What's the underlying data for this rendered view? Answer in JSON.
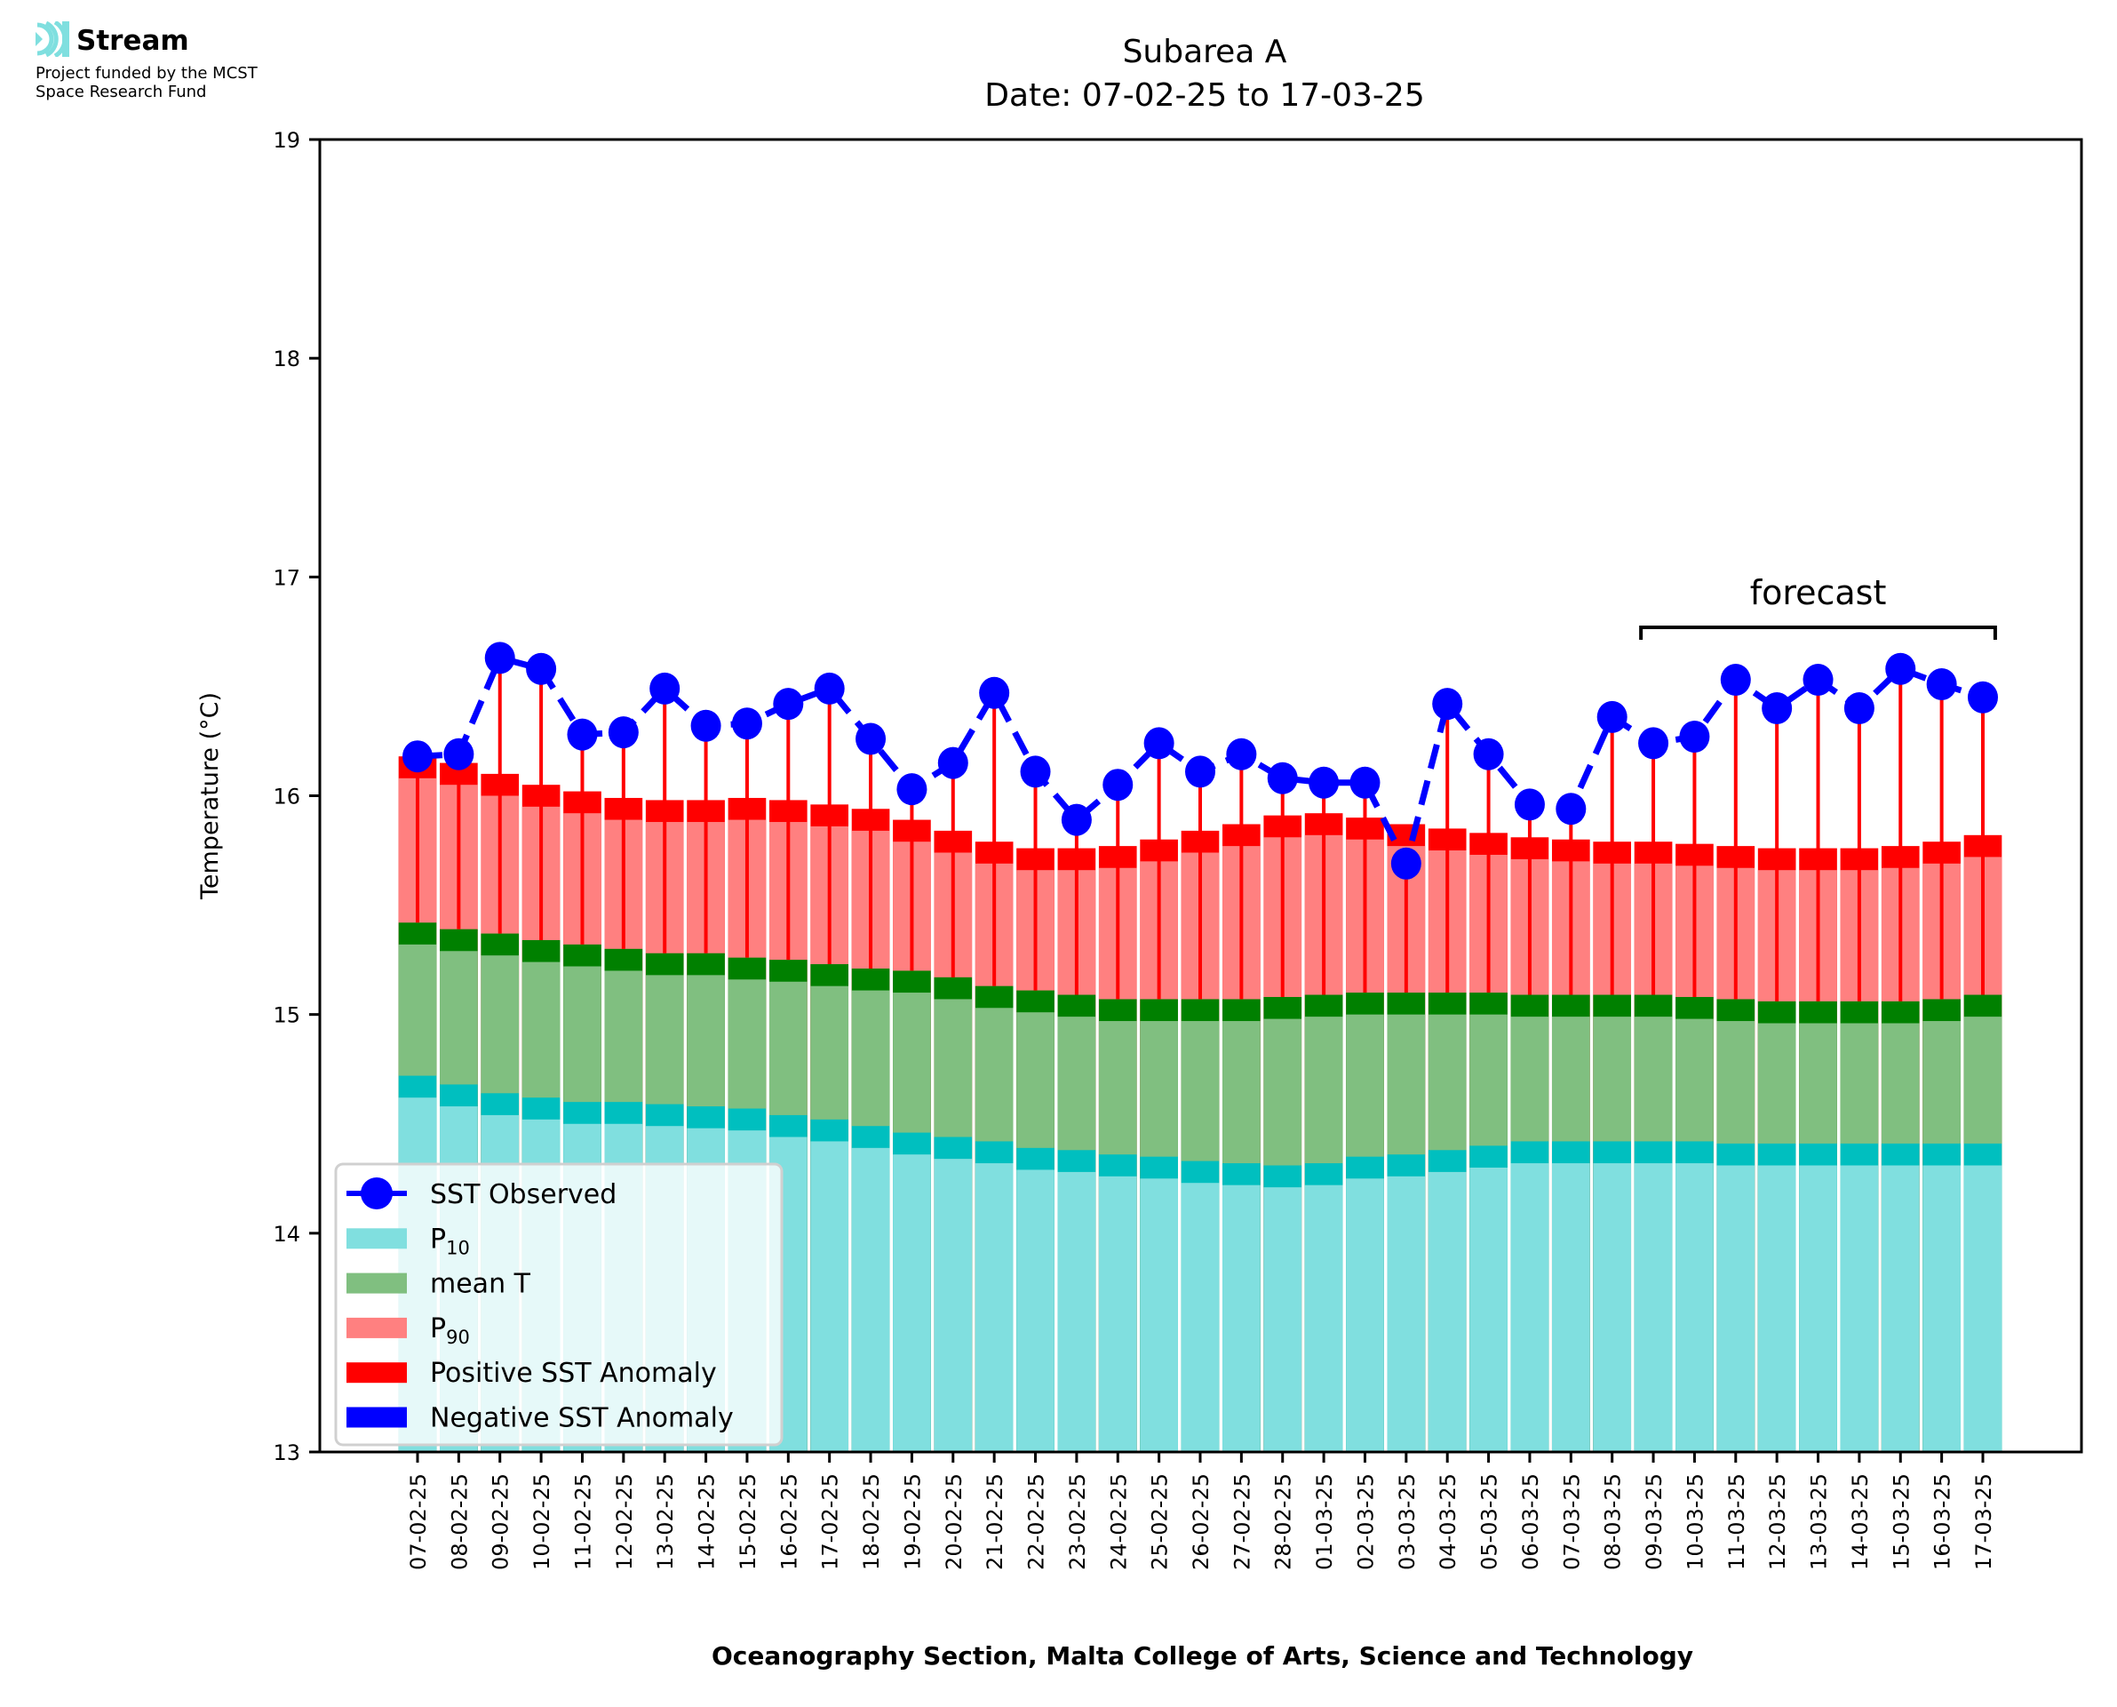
{
  "logo": {
    "icon": "stream-waves-icon",
    "brand": "Stream",
    "fund_line1": "Project funded by the MCST",
    "fund_line2": "Space Research Fund"
  },
  "colors": {
    "p10": "#80dfdf",
    "p10_cap": "#00bfbf",
    "mean": "#80bf80",
    "mean_cap": "#008000",
    "p90": "#ff8080",
    "p90_cap": "#ff0000",
    "positive_anomaly": "#ff0000",
    "negative_anomaly": "#0000ff",
    "observed": "#0000ff"
  },
  "chart_data": {
    "type": "bar",
    "title": "Subarea A",
    "subtitle": "Date: 07-02-25 to 17-03-25",
    "xlabel": "Oceanography Section, Malta College of Arts, Science and Technology",
    "ylabel": "Temperature (°C)",
    "ylim": [
      13,
      19
    ],
    "yticks": [
      "13",
      "14",
      "15",
      "16",
      "17",
      "18",
      "19"
    ],
    "grid": false,
    "legend_position": "bottom-left",
    "legend": [
      {
        "label": "SST Observed",
        "sub": "",
        "kind": "line-marker",
        "color_key": "observed"
      },
      {
        "label": "P",
        "sub": "10",
        "kind": "patch",
        "color_key": "p10"
      },
      {
        "label": "mean T",
        "sub": "",
        "kind": "patch",
        "color_key": "mean"
      },
      {
        "label": "P",
        "sub": "90",
        "kind": "patch",
        "color_key": "p90"
      },
      {
        "label": "Positive SST Anomaly",
        "sub": "",
        "kind": "patch",
        "color_key": "positive_anomaly"
      },
      {
        "label": "Negative SST Anomaly",
        "sub": "",
        "kind": "patch",
        "color_key": "negative_anomaly"
      }
    ],
    "annotation": {
      "text": "forecast",
      "from": "09-03-25",
      "to": "17-03-25"
    },
    "cap_height": 0.1,
    "categories": [
      "07-02-25",
      "08-02-25",
      "09-02-25",
      "10-02-25",
      "11-02-25",
      "12-02-25",
      "13-02-25",
      "14-02-25",
      "15-02-25",
      "16-02-25",
      "17-02-25",
      "18-02-25",
      "19-02-25",
      "20-02-25",
      "21-02-25",
      "22-02-25",
      "23-02-25",
      "24-02-25",
      "25-02-25",
      "26-02-25",
      "27-02-25",
      "28-02-25",
      "01-03-25",
      "02-03-25",
      "03-03-25",
      "04-03-25",
      "05-03-25",
      "06-03-25",
      "07-03-25",
      "08-03-25",
      "09-03-25",
      "10-03-25",
      "11-03-25",
      "12-03-25",
      "13-03-25",
      "14-03-25",
      "15-03-25",
      "16-03-25",
      "17-03-25"
    ],
    "series": [
      {
        "name": "P10",
        "values": [
          14.72,
          14.68,
          14.64,
          14.62,
          14.6,
          14.6,
          14.59,
          14.58,
          14.57,
          14.54,
          14.52,
          14.49,
          14.46,
          14.44,
          14.42,
          14.39,
          14.38,
          14.36,
          14.35,
          14.33,
          14.32,
          14.31,
          14.32,
          14.35,
          14.36,
          14.38,
          14.4,
          14.42,
          14.42,
          14.42,
          14.42,
          14.42,
          14.41,
          14.41,
          14.41,
          14.41,
          14.41,
          14.41,
          14.41
        ]
      },
      {
        "name": "mean T",
        "values": [
          15.42,
          15.39,
          15.37,
          15.34,
          15.32,
          15.3,
          15.28,
          15.28,
          15.26,
          15.25,
          15.23,
          15.21,
          15.2,
          15.17,
          15.13,
          15.11,
          15.09,
          15.07,
          15.07,
          15.07,
          15.07,
          15.08,
          15.09,
          15.1,
          15.1,
          15.1,
          15.1,
          15.09,
          15.09,
          15.09,
          15.09,
          15.08,
          15.07,
          15.06,
          15.06,
          15.06,
          15.06,
          15.07,
          15.09
        ]
      },
      {
        "name": "P90",
        "values": [
          16.18,
          16.15,
          16.1,
          16.05,
          16.02,
          15.99,
          15.98,
          15.98,
          15.99,
          15.98,
          15.96,
          15.94,
          15.89,
          15.84,
          15.79,
          15.76,
          15.76,
          15.77,
          15.8,
          15.84,
          15.87,
          15.91,
          15.92,
          15.9,
          15.87,
          15.85,
          15.83,
          15.81,
          15.8,
          15.79,
          15.79,
          15.78,
          15.77,
          15.76,
          15.76,
          15.76,
          15.77,
          15.79,
          15.82
        ]
      },
      {
        "name": "SST Observed",
        "values": [
          16.18,
          16.19,
          16.63,
          16.58,
          16.28,
          16.29,
          16.49,
          16.32,
          16.33,
          16.42,
          16.49,
          16.26,
          16.03,
          16.15,
          16.47,
          16.11,
          15.89,
          16.05,
          16.24,
          16.11,
          16.19,
          16.08,
          16.06,
          16.06,
          15.69,
          16.42,
          16.19,
          15.96,
          15.94,
          16.36,
          16.24,
          16.27,
          16.53,
          16.4,
          16.53,
          16.4,
          16.58,
          16.51,
          16.45
        ]
      }
    ]
  }
}
